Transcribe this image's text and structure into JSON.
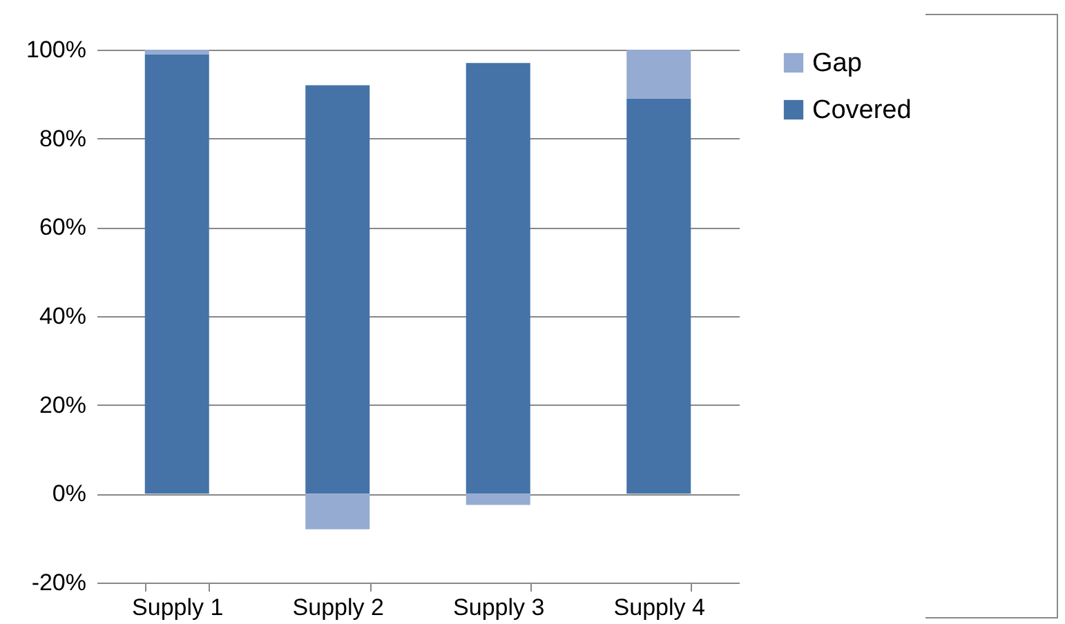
{
  "chart_data": {
    "type": "bar",
    "stacked": true,
    "categories": [
      "Supply 1",
      "Supply 2",
      "Supply 3",
      "Supply 4"
    ],
    "series": [
      {
        "name": "Covered",
        "color": "#4573a7",
        "values": [
          99,
          92,
          97,
          89
        ]
      },
      {
        "name": "Gap",
        "color": "#95abd1",
        "values": [
          1,
          -8,
          -2.5,
          11
        ]
      }
    ],
    "ylim": [
      -20,
      100
    ],
    "yticks": [
      {
        "value": -20,
        "label": "-20%"
      },
      {
        "value": 0,
        "label": "0%"
      },
      {
        "value": 20,
        "label": "20%"
      },
      {
        "value": 40,
        "label": "40%"
      },
      {
        "value": 60,
        "label": "60%"
      },
      {
        "value": 80,
        "label": "80%"
      },
      {
        "value": 100,
        "label": "100%"
      }
    ],
    "grid": "y",
    "legend": "right"
  }
}
